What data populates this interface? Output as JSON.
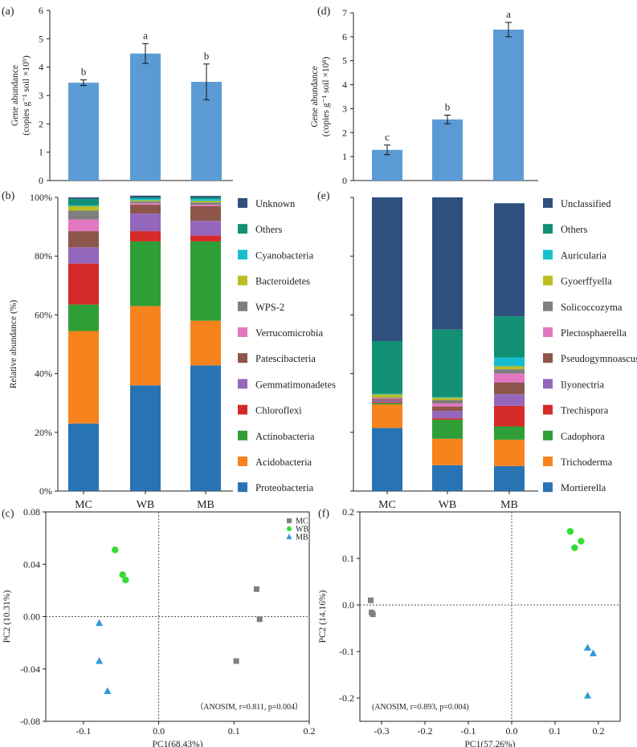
{
  "chart_data": [
    {
      "id": "a",
      "panel": "(a)",
      "type": "bar",
      "categories": [
        "MC",
        "WB",
        "MB"
      ],
      "values": [
        3.45,
        4.48,
        3.48
      ],
      "errors": [
        0.1,
        0.35,
        0.63
      ],
      "letters": [
        "b",
        "a",
        "b"
      ],
      "ylabel_1": "Gene abundance",
      "ylabel_2": "(copies g⁻¹ soil ×10⁹)",
      "ylim": [
        0,
        6
      ],
      "yticks": [
        "0",
        "1",
        "2",
        "3",
        "4",
        "5",
        "6"
      ],
      "color": "#5b9bd5"
    },
    {
      "id": "d",
      "panel": "(d)",
      "type": "bar",
      "categories": [
        "MC",
        "WB",
        "MB"
      ],
      "values": [
        1.28,
        2.55,
        6.3
      ],
      "errors": [
        0.2,
        0.18,
        0.3
      ],
      "letters": [
        "c",
        "b",
        "a"
      ],
      "ylabel_1": "Gene abundance",
      "ylabel_2": "(copies g⁻¹ soil ×10⁸)",
      "ylim": [
        0,
        7
      ],
      "yticks": [
        "0",
        "1",
        "2",
        "3",
        "4",
        "5",
        "6",
        "7"
      ],
      "color": "#5b9bd5"
    },
    {
      "id": "b",
      "panel": "(b)",
      "type": "bar",
      "stacked": true,
      "categories": [
        "MC",
        "WB",
        "MB"
      ],
      "ylabel": "Relative abundance (%)",
      "ylim": [
        0,
        100
      ],
      "yticks": [
        "0%",
        "20%",
        "40%",
        "60%",
        "80%",
        "100%"
      ],
      "series": [
        {
          "name": "Proteobacteria",
          "color": "#2873b3",
          "values": [
            23,
            36,
            42.8
          ]
        },
        {
          "name": "Acidobacteria",
          "color": "#f7831d",
          "values": [
            31.5,
            27,
            15.2
          ]
        },
        {
          "name": "Actinobacteria",
          "color": "#2e9f36",
          "values": [
            9,
            22,
            27
          ]
        },
        {
          "name": "Chloroflexi",
          "color": "#d42a28",
          "values": [
            14,
            3.5,
            2
          ]
        },
        {
          "name": "Gemmatimonadetes",
          "color": "#9467bd",
          "values": [
            5.5,
            6,
            5
          ]
        },
        {
          "name": "Patescibacteria",
          "color": "#8c564b",
          "values": [
            5.5,
            3,
            5
          ]
        },
        {
          "name": "Verrucomicrobia",
          "color": "#e377c2",
          "values": [
            4,
            0.5,
            0.5
          ]
        },
        {
          "name": "WPS-2",
          "color": "#7f7f7f",
          "values": [
            3,
            0.6,
            0.8
          ]
        },
        {
          "name": "Bacteroidetes",
          "color": "#bcbd22",
          "values": [
            1.5,
            0.4,
            0.5
          ]
        },
        {
          "name": "Cyanobacteria",
          "color": "#17becf",
          "values": [
            0.3,
            0.6,
            0.6
          ]
        },
        {
          "name": "Others",
          "color": "#119075",
          "values": [
            2.2,
            0.4,
            0.6
          ]
        },
        {
          "name": "Unknown",
          "color": "#2f4f7f",
          "values": [
            0.5,
            0.6,
            0.5
          ]
        }
      ]
    },
    {
      "id": "e",
      "panel": "(e)",
      "type": "bar",
      "stacked": true,
      "categories": [
        "MC",
        "WB",
        "MB"
      ],
      "ylim": [
        0,
        100
      ],
      "series": [
        {
          "name": "Mortierella",
          "color": "#2873b3",
          "values": [
            21.5,
            8.8,
            8.5
          ]
        },
        {
          "name": "Trichoderma",
          "color": "#f7831d",
          "values": [
            8,
            9,
            9
          ]
        },
        {
          "name": "Cadophora",
          "color": "#2e9f36",
          "values": [
            0.5,
            6.5,
            4.5
          ]
        },
        {
          "name": "Trechispora",
          "color": "#d42a28",
          "values": [
            0.3,
            0.5,
            7
          ]
        },
        {
          "name": "Ilyonectria",
          "color": "#9467bd",
          "values": [
            0.5,
            2.5,
            4
          ]
        },
        {
          "name": "Pseudogymnoascus",
          "color": "#8c564b",
          "values": [
            0.5,
            1.5,
            4
          ]
        },
        {
          "name": "Plectosphaerella",
          "color": "#e377c2",
          "values": [
            0.3,
            1,
            3
          ]
        },
        {
          "name": "Solicoccozyma",
          "color": "#7f7f7f",
          "values": [
            0.3,
            1.2,
            1.5
          ]
        },
        {
          "name": "Gyoerffyella",
          "color": "#bcbd22",
          "values": [
            1,
            0.8,
            1
          ]
        },
        {
          "name": "Auricularia",
          "color": "#17becf",
          "values": [
            0.2,
            0.2,
            3
          ]
        },
        {
          "name": "Others",
          "color": "#119075",
          "values": [
            18,
            23,
            14
          ]
        },
        {
          "name": "Unclassified",
          "color": "#2f4f7f",
          "values": [
            48.9,
            45,
            38.5
          ]
        }
      ]
    },
    {
      "id": "c",
      "panel": "(c)",
      "type": "scatter",
      "xlabel": "PC1(68.43%)",
      "ylabel": "PC2 (10.31%)",
      "xlim": [
        -0.15,
        0.2
      ],
      "ylim": [
        -0.08,
        0.08
      ],
      "xticks": [
        -0.1,
        0.0,
        0.1,
        0.2
      ],
      "xtick_labels": [
        "-0.1",
        "0.0",
        "0.1",
        "0.2"
      ],
      "yticks": [
        -0.08,
        -0.04,
        0.0,
        0.04,
        0.08
      ],
      "ytick_labels": [
        "-0.08",
        "-0.04",
        "0.00",
        "0.04",
        "0.08"
      ],
      "note": "（ANOSIM, r=0.811, p=0.004）",
      "series": [
        {
          "name": "MC",
          "marker": "square",
          "color": "#808080",
          "points": [
            [
              0.13,
              0.021
            ],
            [
              0.134,
              -0.002
            ],
            [
              0.103,
              -0.034
            ]
          ]
        },
        {
          "name": "WB",
          "marker": "circle",
          "color": "#33dd33",
          "points": [
            [
              -0.058,
              0.051
            ],
            [
              -0.048,
              0.032
            ],
            [
              -0.044,
              0.028
            ]
          ]
        },
        {
          "name": "MB",
          "marker": "triangle",
          "color": "#2a9bd8",
          "points": [
            [
              -0.079,
              -0.005
            ],
            [
              -0.079,
              -0.034
            ],
            [
              -0.068,
              -0.057
            ]
          ]
        }
      ]
    },
    {
      "id": "f",
      "panel": "(f)",
      "type": "scatter",
      "xlabel": "PC1(57.26%)",
      "ylabel": "PC2 (14.16%)",
      "xlim": [
        -0.35,
        0.25
      ],
      "ylim": [
        -0.25,
        0.2
      ],
      "xticks": [
        -0.3,
        -0.2,
        -0.1,
        0.0,
        0.1,
        0.2
      ],
      "xtick_labels": [
        "-0.3",
        "-0.2",
        "-0.1",
        "0.0",
        "0.1",
        "0.2"
      ],
      "yticks": [
        -0.2,
        -0.1,
        0.0,
        0.1,
        0.2
      ],
      "ytick_labels": [
        "-0.2",
        "-0.1",
        "0.0",
        "0.1",
        "0.2"
      ],
      "note": "(ANOSIM, r=0.893, p=0.004)",
      "series": [
        {
          "name": "MC",
          "marker": "square",
          "color": "#808080",
          "points": [
            [
              -0.325,
              0.01
            ],
            [
              -0.323,
              -0.016
            ],
            [
              -0.32,
              -0.02
            ]
          ]
        },
        {
          "name": "WB",
          "marker": "circle",
          "color": "#33dd33",
          "points": [
            [
              0.135,
              0.158
            ],
            [
              0.16,
              0.137
            ],
            [
              0.145,
              0.123
            ]
          ]
        },
        {
          "name": "MB",
          "marker": "triangle",
          "color": "#2a9bd8",
          "points": [
            [
              0.175,
              -0.092
            ],
            [
              0.188,
              -0.104
            ],
            [
              0.175,
              -0.195
            ]
          ]
        }
      ]
    }
  ]
}
